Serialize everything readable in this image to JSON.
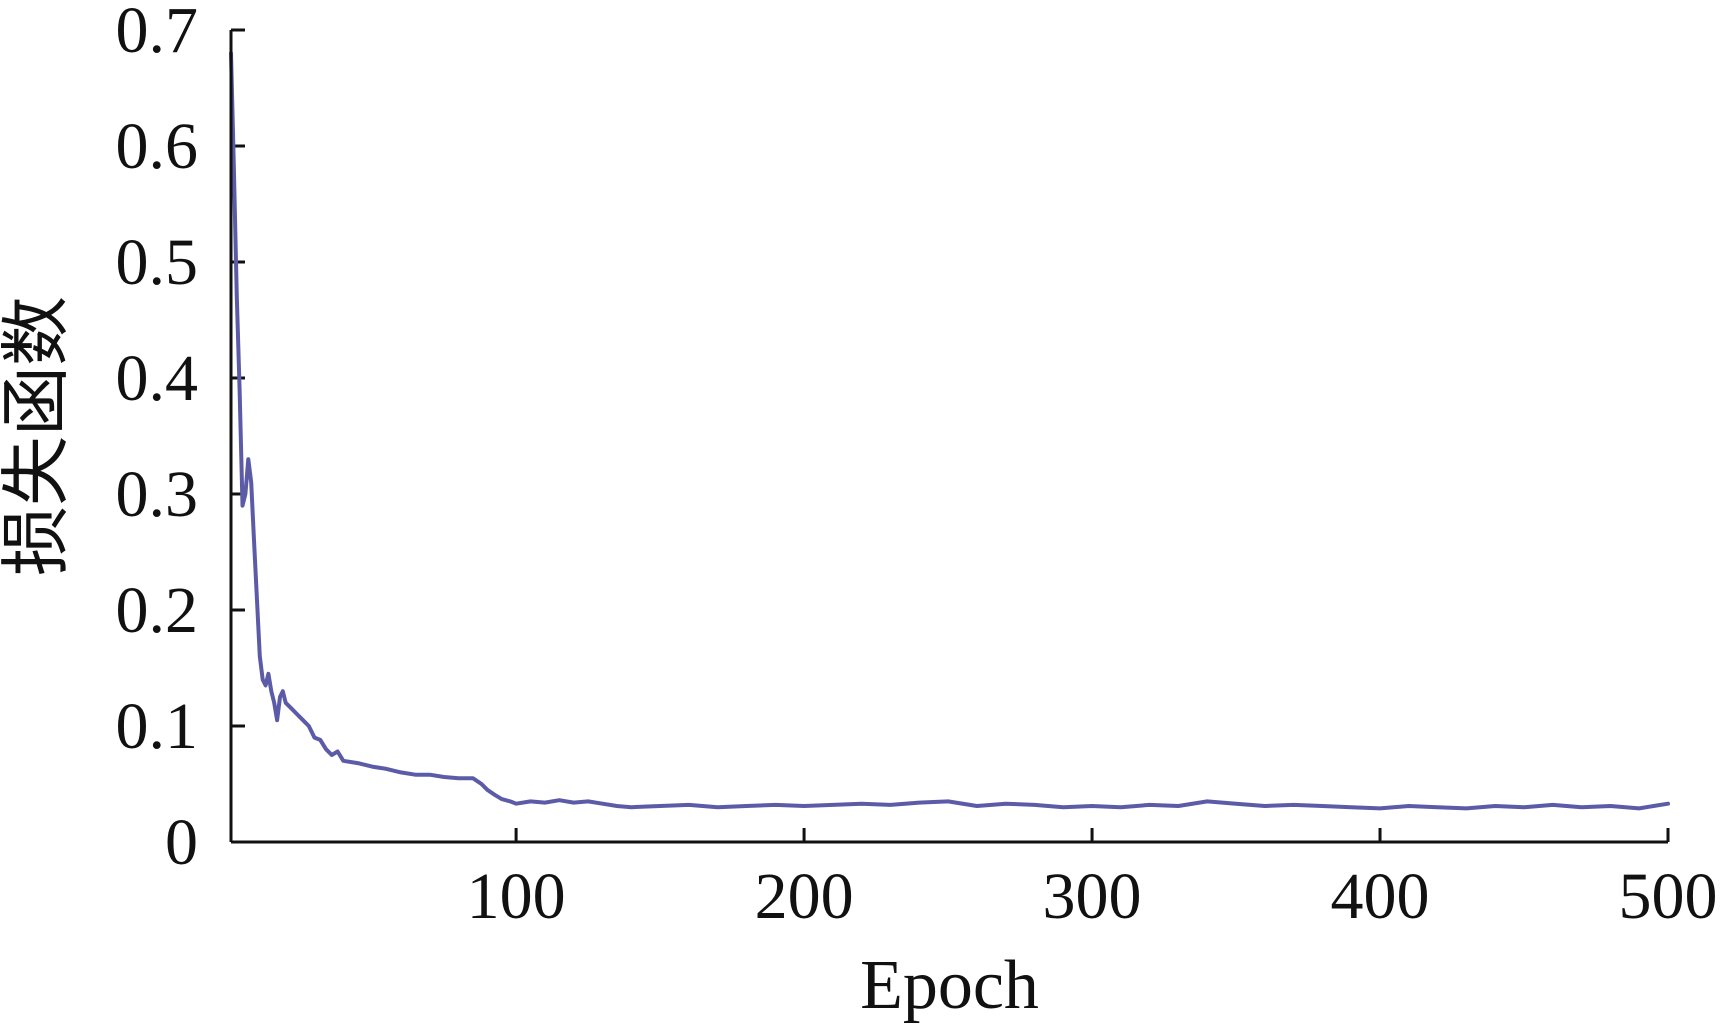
{
  "chart_data": {
    "type": "line",
    "title": "",
    "xlabel": "Epoch",
    "ylabel": "损失函数",
    "xlim": [
      1,
      500
    ],
    "ylim": [
      0,
      0.7
    ],
    "x_ticks": [
      {
        "value": 100,
        "label": "100"
      },
      {
        "value": 200,
        "label": "200"
      },
      {
        "value": 300,
        "label": "300"
      },
      {
        "value": 400,
        "label": "400"
      },
      {
        "value": 500,
        "label": "500"
      }
    ],
    "y_ticks": [
      {
        "value": 0,
        "label": "0"
      },
      {
        "value": 0.1,
        "label": "0.1"
      },
      {
        "value": 0.2,
        "label": "0.2"
      },
      {
        "value": 0.3,
        "label": "0.3"
      },
      {
        "value": 0.4,
        "label": "0.4"
      },
      {
        "value": 0.5,
        "label": "0.5"
      },
      {
        "value": 0.6,
        "label": "0.6"
      },
      {
        "value": 0.7,
        "label": "0.7"
      }
    ],
    "grid": false,
    "legend": "none",
    "series": [
      {
        "color": "#5b5ba8",
        "points": [
          [
            1,
            0.68
          ],
          [
            2,
            0.58
          ],
          [
            3,
            0.47
          ],
          [
            4,
            0.39
          ],
          [
            5,
            0.29
          ],
          [
            6,
            0.3
          ],
          [
            7,
            0.33
          ],
          [
            8,
            0.31
          ],
          [
            9,
            0.26
          ],
          [
            10,
            0.21
          ],
          [
            11,
            0.16
          ],
          [
            12,
            0.14
          ],
          [
            13,
            0.135
          ],
          [
            14,
            0.145
          ],
          [
            15,
            0.13
          ],
          [
            16,
            0.12
          ],
          [
            17,
            0.105
          ],
          [
            18,
            0.125
          ],
          [
            19,
            0.13
          ],
          [
            20,
            0.12
          ],
          [
            22,
            0.115
          ],
          [
            24,
            0.11
          ],
          [
            26,
            0.105
          ],
          [
            28,
            0.1
          ],
          [
            30,
            0.09
          ],
          [
            32,
            0.088
          ],
          [
            34,
            0.08
          ],
          [
            36,
            0.075
          ],
          [
            38,
            0.078
          ],
          [
            40,
            0.07
          ],
          [
            45,
            0.068
          ],
          [
            50,
            0.065
          ],
          [
            55,
            0.063
          ],
          [
            60,
            0.06
          ],
          [
            65,
            0.058
          ],
          [
            70,
            0.058
          ],
          [
            75,
            0.056
          ],
          [
            80,
            0.055
          ],
          [
            85,
            0.055
          ],
          [
            88,
            0.05
          ],
          [
            90,
            0.045
          ],
          [
            93,
            0.04
          ],
          [
            95,
            0.037
          ],
          [
            98,
            0.035
          ],
          [
            100,
            0.033
          ],
          [
            105,
            0.035
          ],
          [
            110,
            0.034
          ],
          [
            115,
            0.036
          ],
          [
            120,
            0.034
          ],
          [
            125,
            0.035
          ],
          [
            130,
            0.033
          ],
          [
            135,
            0.031
          ],
          [
            140,
            0.03
          ],
          [
            150,
            0.031
          ],
          [
            160,
            0.032
          ],
          [
            170,
            0.03
          ],
          [
            180,
            0.031
          ],
          [
            190,
            0.032
          ],
          [
            200,
            0.031
          ],
          [
            210,
            0.032
          ],
          [
            220,
            0.033
          ],
          [
            230,
            0.032
          ],
          [
            240,
            0.034
          ],
          [
            250,
            0.035
          ],
          [
            260,
            0.031
          ],
          [
            270,
            0.033
          ],
          [
            280,
            0.032
          ],
          [
            290,
            0.03
          ],
          [
            300,
            0.031
          ],
          [
            310,
            0.03
          ],
          [
            320,
            0.032
          ],
          [
            330,
            0.031
          ],
          [
            340,
            0.035
          ],
          [
            350,
            0.033
          ],
          [
            360,
            0.031
          ],
          [
            370,
            0.032
          ],
          [
            380,
            0.031
          ],
          [
            390,
            0.03
          ],
          [
            400,
            0.029
          ],
          [
            410,
            0.031
          ],
          [
            420,
            0.03
          ],
          [
            430,
            0.029
          ],
          [
            440,
            0.031
          ],
          [
            450,
            0.03
          ],
          [
            460,
            0.032
          ],
          [
            470,
            0.03
          ],
          [
            480,
            0.031
          ],
          [
            490,
            0.029
          ],
          [
            495,
            0.031
          ],
          [
            500,
            0.033
          ]
        ]
      }
    ]
  }
}
